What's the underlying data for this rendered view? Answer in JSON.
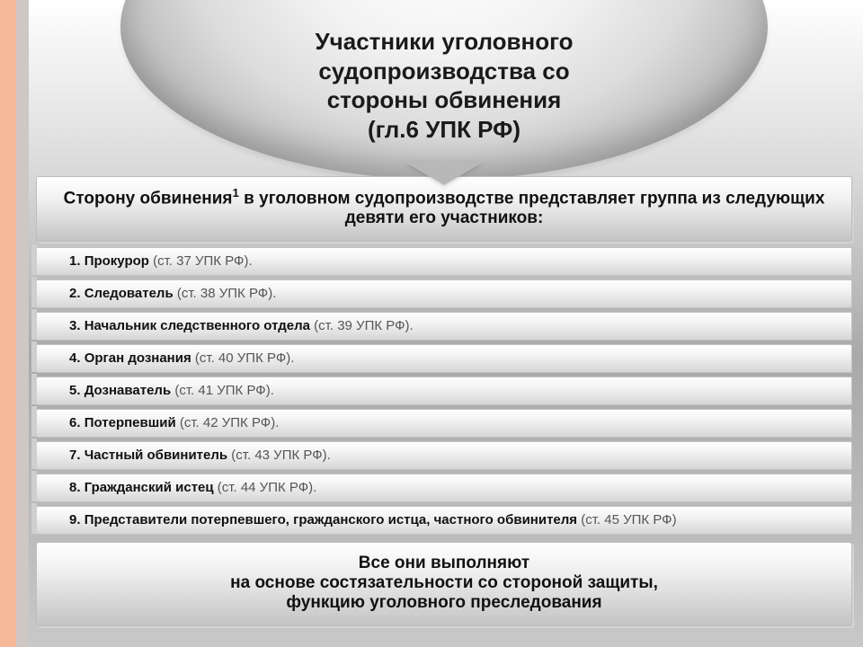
{
  "title": {
    "line1": "Участники уголовного",
    "line2": "судопроизводства со",
    "line3": "стороны обвинения",
    "line4": "(гл.6 УПК РФ)",
    "fontsize": 26,
    "color": "#1a1a1a"
  },
  "subtitle": {
    "pre": "Сторону обвинения",
    "sup": "1",
    "post": " в уголовном судопроизводстве представляет группа из следующих девяти его участников:",
    "fontsize": 19
  },
  "items": [
    {
      "num": "1.",
      "name": "Прокурор",
      "ref": "(ст. 37 УПК РФ)."
    },
    {
      "num": "2.",
      "name": "Следователь",
      "ref": "(ст. 38 УПК РФ)."
    },
    {
      "num": "3.",
      "name": "Начальник следственного отдела",
      "ref": "(ст. 39 УПК РФ)."
    },
    {
      "num": "4.",
      "name": "Орган дознания",
      "ref": "(ст. 40 УПК РФ)."
    },
    {
      "num": "5.",
      "name": "Дознаватель",
      "ref": "(ст. 41 УПК РФ)."
    },
    {
      "num": "6.",
      "name": "Потерпевший",
      "ref": "(ст. 42 УПК РФ)."
    },
    {
      "num": "7.",
      "name": "Частный обвинитель",
      "ref": "(ст. 43 УПК РФ)."
    },
    {
      "num": "8.",
      "name": "Гражданский истец",
      "ref": "(ст. 44 УПК РФ)."
    },
    {
      "num": "9.",
      "name": "Представители потерпевшего, гражданского истца, частного обвинителя",
      "ref": "(ст. 45 УПК РФ)"
    }
  ],
  "item_fontsize": 15,
  "footer": {
    "line1": "Все они выполняют",
    "line2": "на основе состязательности со стороной защиты,",
    "line3": "функцию уголовного преследования",
    "fontsize": 19
  },
  "colors": {
    "left_bar": "#f5b99a",
    "left_bar2": "#cfc7c2",
    "bg_top": "#ffffff",
    "bg_bottom": "#c8c8c8",
    "row_border": "#c2c2c2",
    "ref_text": "#555555"
  }
}
